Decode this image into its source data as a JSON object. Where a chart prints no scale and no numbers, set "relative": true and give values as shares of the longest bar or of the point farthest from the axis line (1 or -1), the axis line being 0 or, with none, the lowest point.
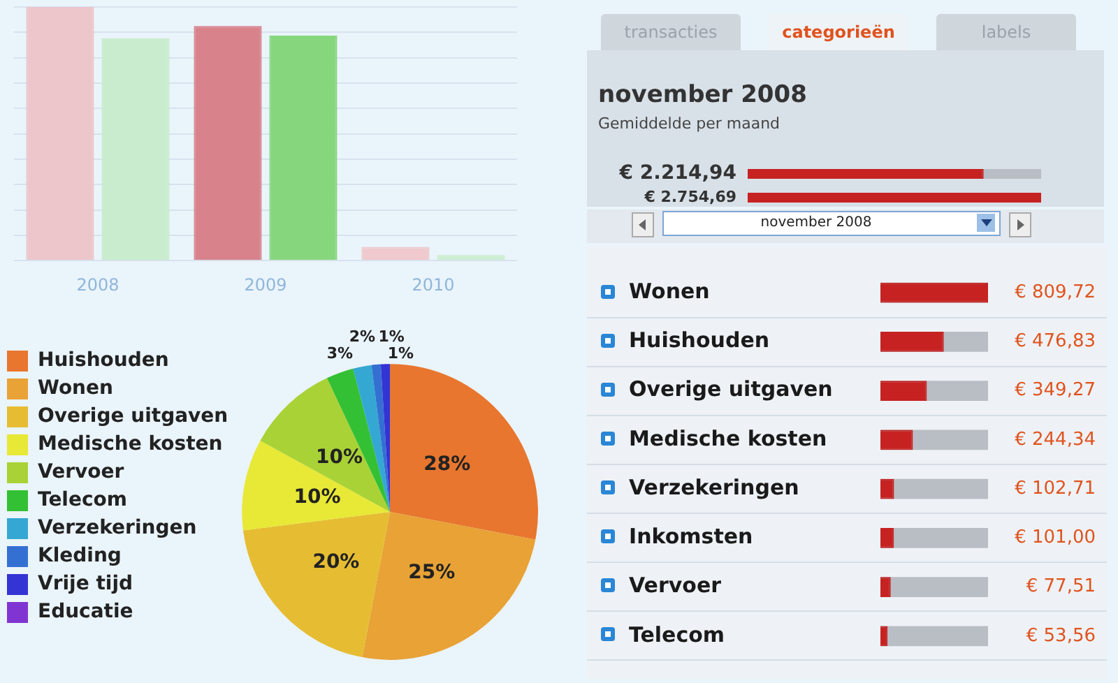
{
  "chart_data": [
    {
      "type": "bar",
      "categories": [
        "2008",
        "2009",
        "2010"
      ],
      "relative": true,
      "grid": "y",
      "series": [
        {
          "colors": [
            "#ecc6cb",
            "#d8838c",
            "#efc9cd"
          ],
          "values": [
            1,
            0.925,
            0.054
          ]
        },
        {
          "colors": [
            "#c9ecce",
            "#86d67e",
            "#cdeed0"
          ],
          "values": [
            0.876,
            0.887,
            0.022
          ]
        }
      ]
    },
    {
      "type": "bar",
      "orientation": "horizontal",
      "title": "november 2008",
      "subtitle": "Gemiddelde per maand",
      "categories": [
        null,
        null
      ],
      "values": [
        2214.94,
        2754.69
      ],
      "color": "#c62222",
      "value_labels": [
        "€ 2.214,94",
        "€ 2.754,69"
      ],
      "annotations": [
        "transacties",
        "categorieën",
        "labels",
        "november 2008"
      ]
    },
    {
      "type": "pie",
      "legend": "left",
      "categories": [
        "Huishouden",
        "Wonen",
        "Overige uitgaven",
        "Medische kosten",
        "Vervoer",
        "Telecom",
        "Verzekeringen",
        "Kleding",
        "Vrije tijd",
        "Educatie"
      ],
      "values": [
        28,
        25,
        20,
        10,
        10,
        3,
        2,
        1,
        1,
        0
      ],
      "colors": [
        "#e8762e",
        "#e8a236",
        "#e6bd32",
        "#e8e836",
        "#a9d236",
        "#34c034",
        "#34a8d2",
        "#3470d2",
        "#3434d4",
        "#8034d2"
      ],
      "value_labels": [
        "28%",
        "25%",
        "20%",
        "10%",
        "10%",
        "3%",
        "2%",
        "1%",
        "1%",
        null
      ]
    },
    {
      "type": "bar",
      "orientation": "horizontal",
      "categories": [
        "Wonen",
        "Huishouden",
        "Overige uitgaven",
        "Medische kosten",
        "Verzekeringen",
        "Inkomsten",
        "Vervoer",
        "Telecom"
      ],
      "values": [
        809.72,
        476.83,
        349.27,
        244.34,
        102.71,
        101.0,
        77.51,
        53.56
      ],
      "color": "#c62222",
      "value_labels": [
        "€ 809,72",
        "€ 476,83",
        "€ 349,27",
        "€ 244,34",
        "€ 102,71",
        "€ 101,00",
        "€ 77,51",
        "€ 53,56"
      ]
    }
  ]
}
